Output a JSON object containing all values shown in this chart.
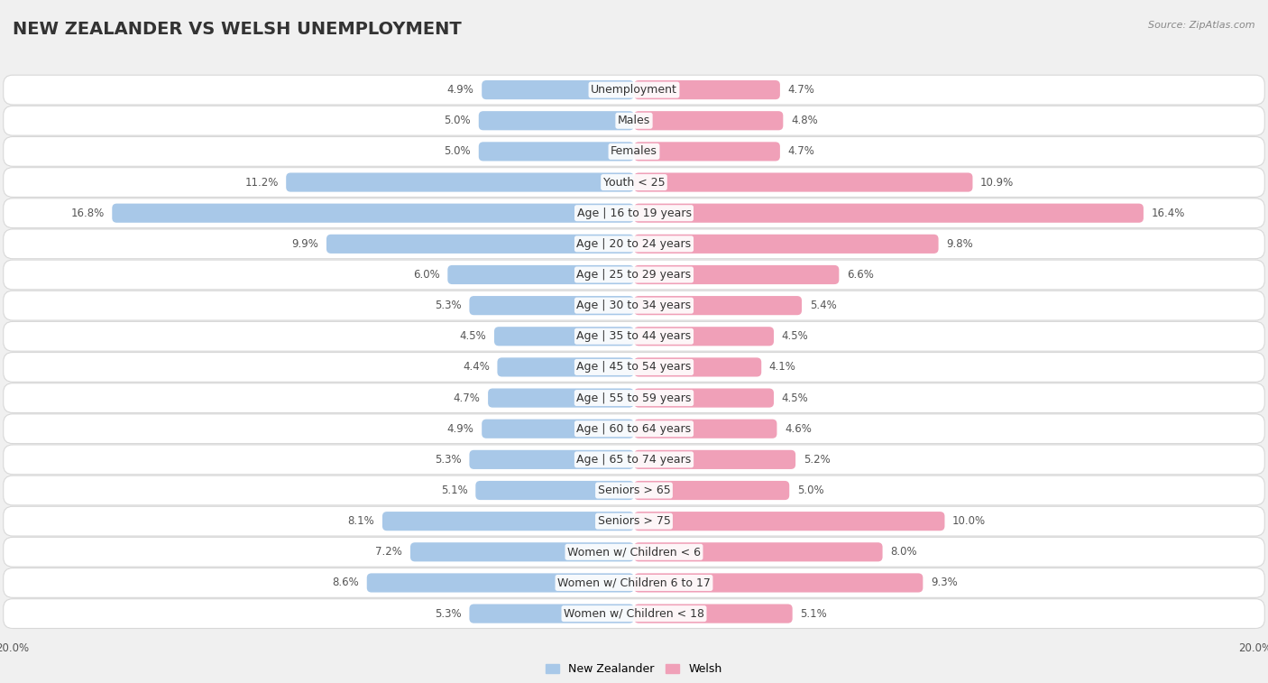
{
  "title": "NEW ZEALANDER VS WELSH UNEMPLOYMENT",
  "source": "Source: ZipAtlas.com",
  "categories": [
    "Unemployment",
    "Males",
    "Females",
    "Youth < 25",
    "Age | 16 to 19 years",
    "Age | 20 to 24 years",
    "Age | 25 to 29 years",
    "Age | 30 to 34 years",
    "Age | 35 to 44 years",
    "Age | 45 to 54 years",
    "Age | 55 to 59 years",
    "Age | 60 to 64 years",
    "Age | 65 to 74 years",
    "Seniors > 65",
    "Seniors > 75",
    "Women w/ Children < 6",
    "Women w/ Children 6 to 17",
    "Women w/ Children < 18"
  ],
  "nz_values": [
    4.9,
    5.0,
    5.0,
    11.2,
    16.8,
    9.9,
    6.0,
    5.3,
    4.5,
    4.4,
    4.7,
    4.9,
    5.3,
    5.1,
    8.1,
    7.2,
    8.6,
    5.3
  ],
  "welsh_values": [
    4.7,
    4.8,
    4.7,
    10.9,
    16.4,
    9.8,
    6.6,
    5.4,
    4.5,
    4.1,
    4.5,
    4.6,
    5.2,
    5.0,
    10.0,
    8.0,
    9.3,
    5.1
  ],
  "nz_color": "#a8c8e8",
  "welsh_color": "#f0a0b8",
  "nz_label": "New Zealander",
  "welsh_label": "Welsh",
  "axis_limit": 20.0,
  "page_bg": "#f0f0f0",
  "row_bg": "#ffffff",
  "row_border": "#d8d8d8",
  "title_fontsize": 14,
  "label_fontsize": 9,
  "value_fontsize": 8.5,
  "source_fontsize": 8
}
